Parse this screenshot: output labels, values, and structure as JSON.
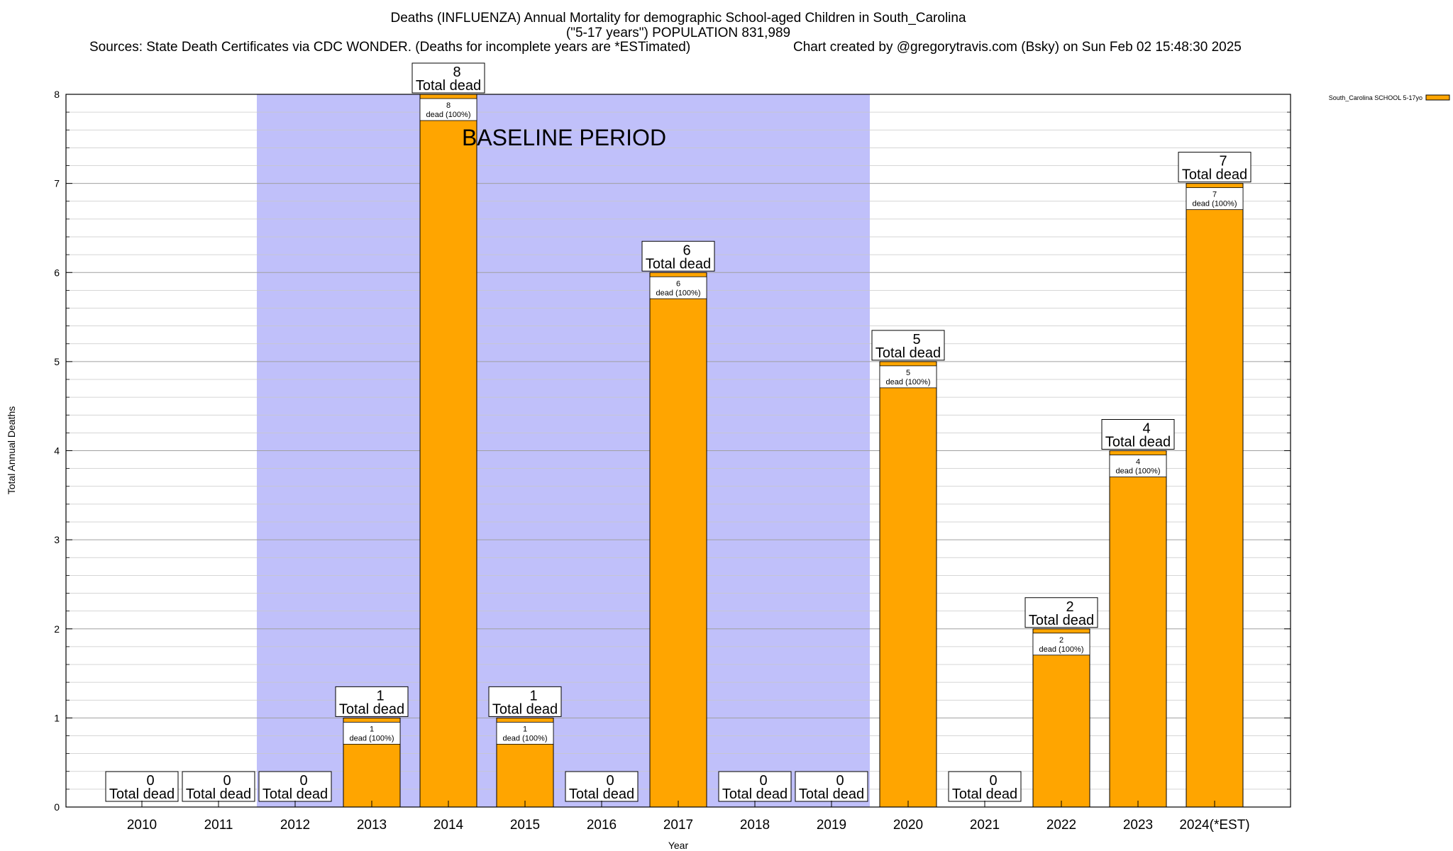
{
  "chart_data": {
    "type": "bar",
    "title": "Deaths (INFLUENZA) Annual Mortality for demographic School-aged Children in South_Carolina",
    "subtitle": "(\"5-17 years\") POPULATION 831,989",
    "source_line": "Sources: State Death Certificates via CDC WONDER. (Deaths for incomplete years are *ESTimated)",
    "credit_line": "Chart created by @gregorytravis.com (Bsky) on Sun Feb 02 15:48:30 2025",
    "xlabel": "Year",
    "ylabel": "Total Annual Deaths",
    "ylim": [
      0,
      8
    ],
    "yticks": [
      "0",
      "1",
      "2",
      "3",
      "4",
      "5",
      "6",
      "7",
      "8"
    ],
    "categories": [
      "2010",
      "2011",
      "2012",
      "2013",
      "2014",
      "2015",
      "2016",
      "2017",
      "2018",
      "2019",
      "2020",
      "2021",
      "2022",
      "2023",
      "2024(*EST)"
    ],
    "series": [
      {
        "name": "South_Carolina SCHOOL 5-17yo",
        "values": [
          0,
          0,
          0,
          1,
          8,
          1,
          0,
          6,
          0,
          0,
          5,
          0,
          2,
          4,
          7
        ]
      }
    ],
    "total_label": "Total dead",
    "inner_label": "dead (100%)",
    "baseline_label": "BASELINE PERIOD",
    "baseline_range": [
      "2012",
      "2019"
    ],
    "grid": true,
    "legend_position": "top-right",
    "colors": {
      "bar": "#ffa500",
      "baseline": "#c0c0fa"
    }
  }
}
